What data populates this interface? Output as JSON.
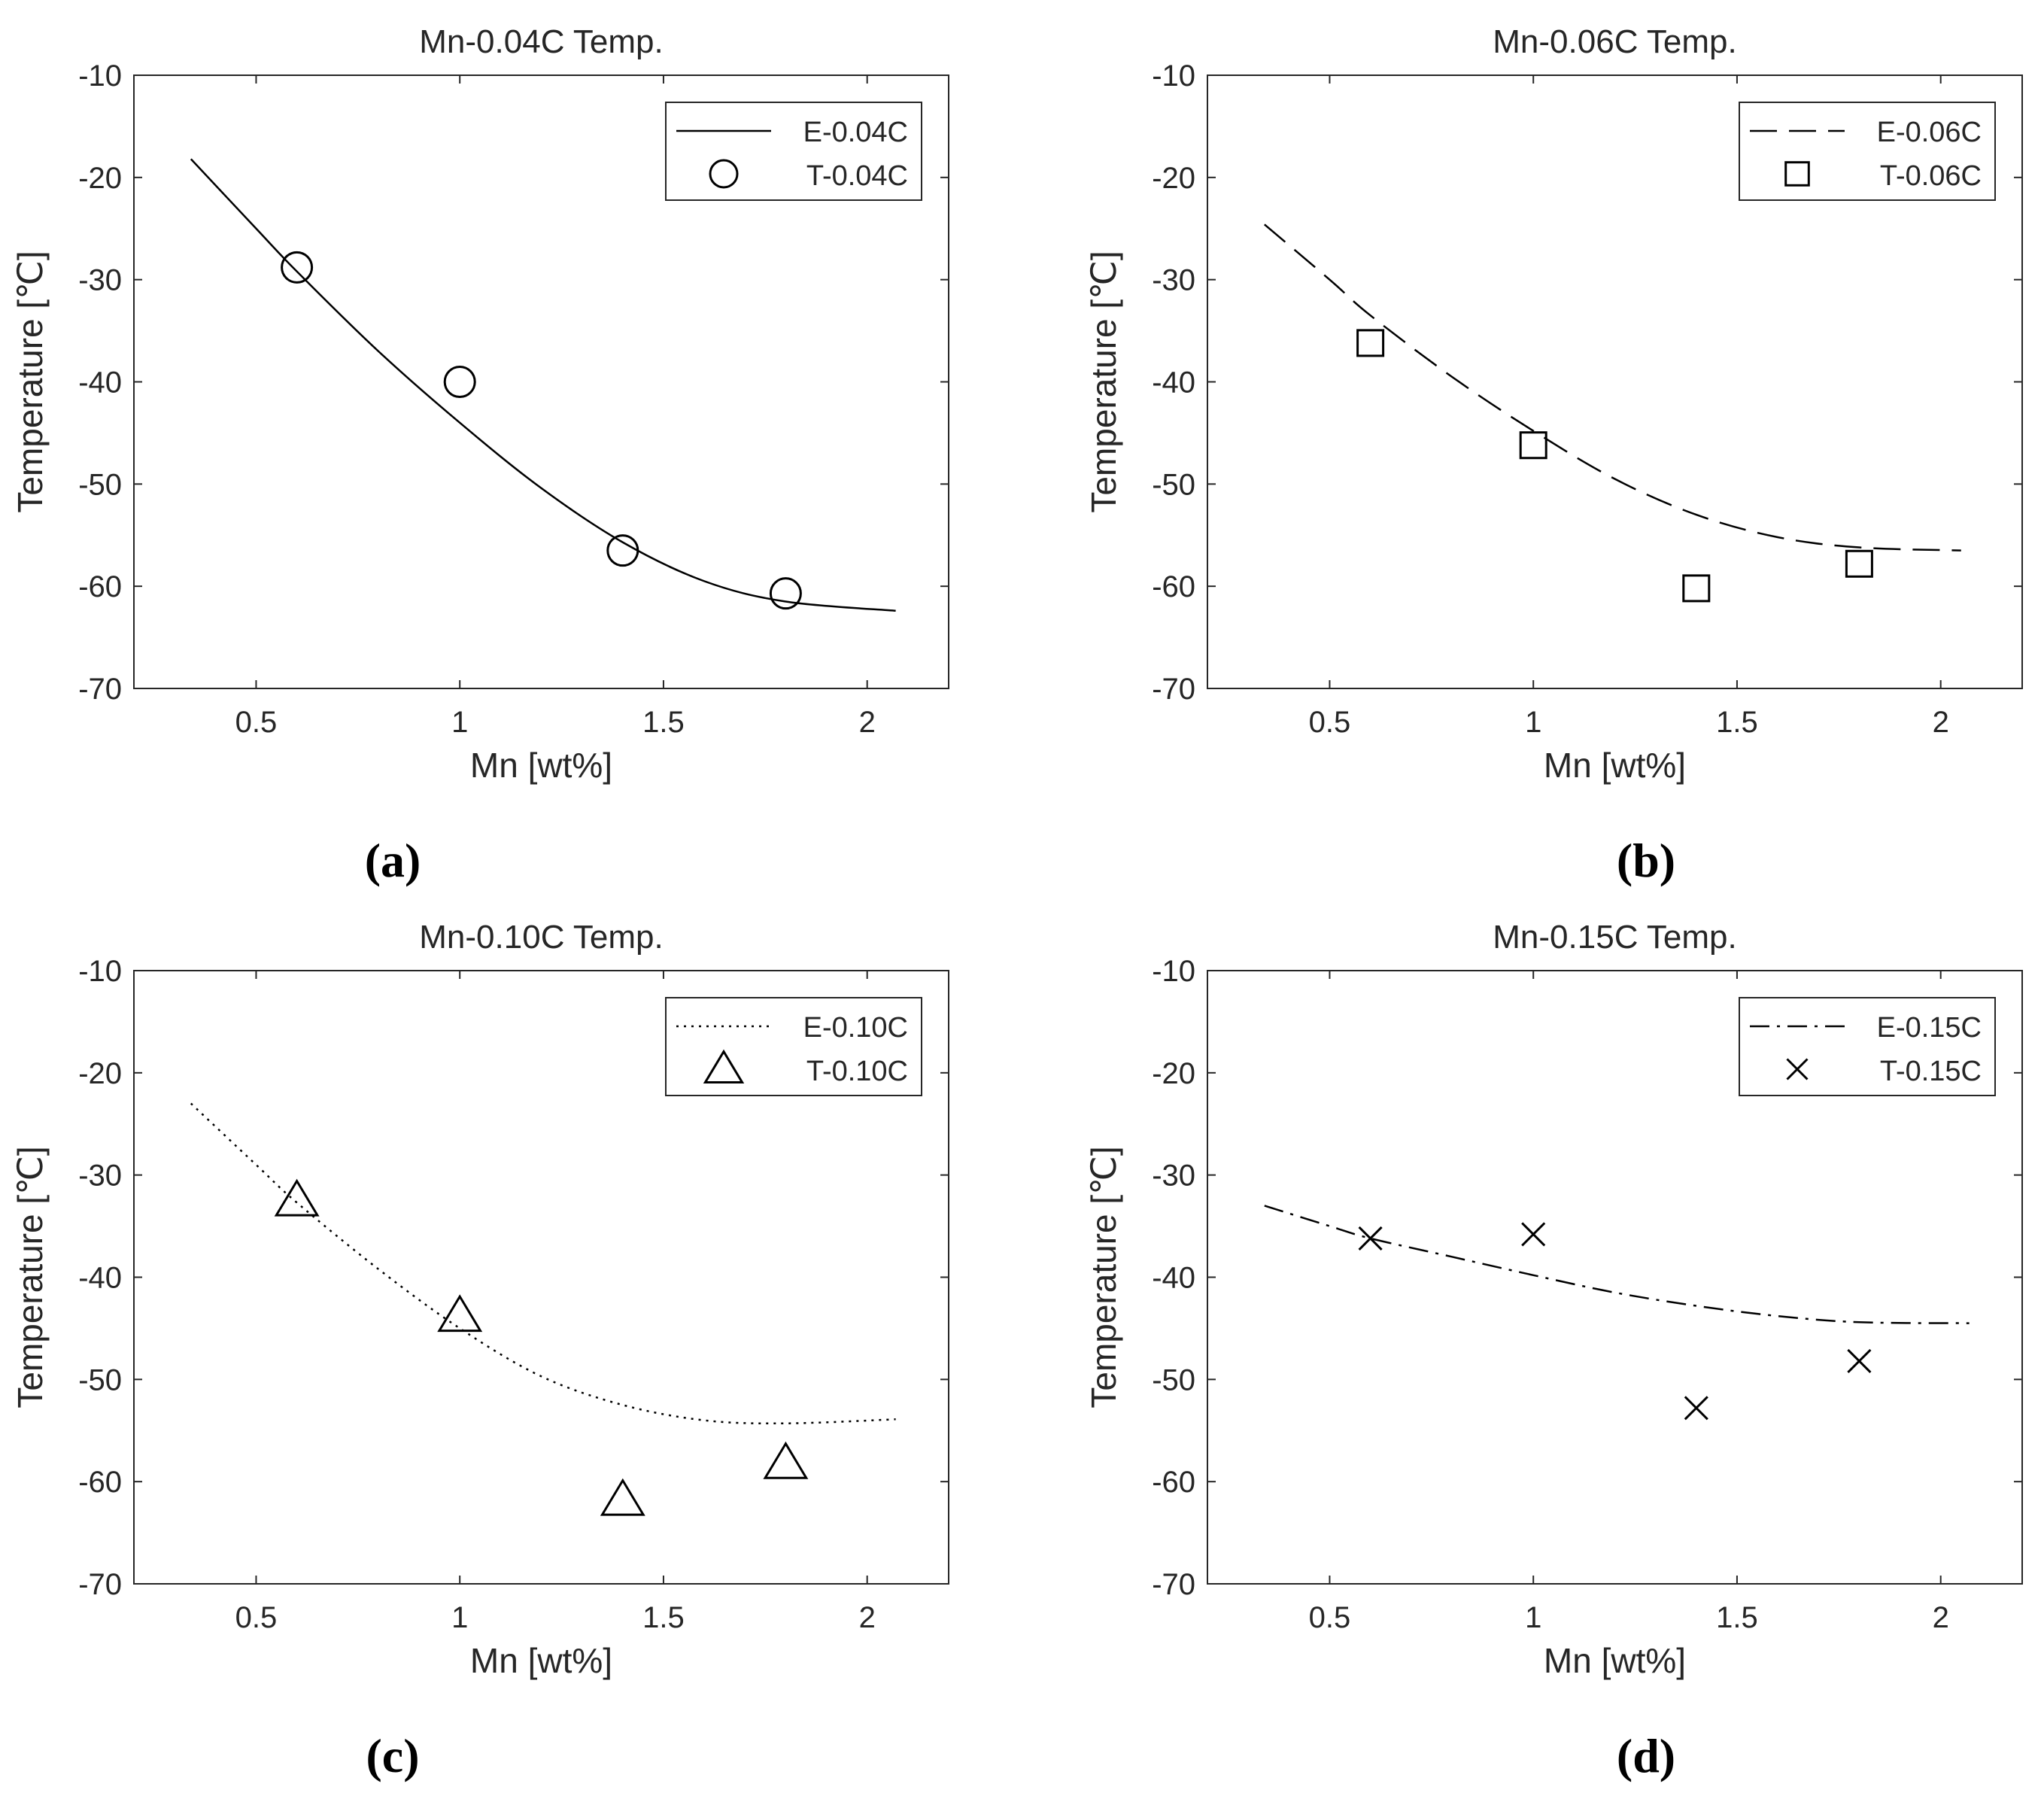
{
  "chart_data": [
    {
      "type": "line+scatter",
      "panel": "(a)",
      "title": "Mn-0.04C Temp.",
      "xlabel": "Mn [wt%]",
      "ylabel": "Temperature [℃]",
      "xlim": [
        0.2,
        2.2
      ],
      "ylim": [
        -70,
        -10
      ],
      "xticks": [
        0.5,
        1,
        1.5,
        2
      ],
      "xtick_labels": [
        "0.5",
        "1",
        "1.5",
        "2"
      ],
      "yticks": [
        -70,
        -60,
        -50,
        -40,
        -30,
        -20,
        -10
      ],
      "ytick_labels": [
        "-70",
        "-60",
        "-50",
        "-40",
        "-30",
        "-20",
        "-10"
      ],
      "legend": [
        "E-0.04C",
        "T-0.04C"
      ],
      "legend_position": "top-right",
      "line": {
        "name": "E-0.04C",
        "style": "solid",
        "x": [
          0.34,
          0.5,
          0.6,
          0.8,
          1.0,
          1.2,
          1.4,
          1.6,
          1.8,
          2.07
        ],
        "y": [
          -18.2,
          -25.0,
          -29.2,
          -37.0,
          -44.0,
          -50.4,
          -55.7,
          -59.5,
          -61.5,
          -62.4
        ]
      },
      "points": {
        "name": "T-0.04C",
        "marker": "circle",
        "x": [
          0.6,
          1.0,
          1.4,
          1.8
        ],
        "y": [
          -28.8,
          -40.0,
          -56.5,
          -60.7
        ]
      }
    },
    {
      "type": "line+scatter",
      "panel": "(b)",
      "title": "Mn-0.06C Temp.",
      "xlabel": "Mn [wt%]",
      "ylabel": "Temperature [℃]",
      "xlim": [
        0.2,
        2.2
      ],
      "ylim": [
        -70,
        -10
      ],
      "xticks": [
        0.5,
        1,
        1.5,
        2
      ],
      "xtick_labels": [
        "0.5",
        "1",
        "1.5",
        "2"
      ],
      "yticks": [
        -70,
        -60,
        -50,
        -40,
        -30,
        -20,
        -10
      ],
      "ytick_labels": [
        "-70",
        "-60",
        "-50",
        "-40",
        "-30",
        "-20",
        "-10"
      ],
      "legend": [
        "E-0.06C",
        "T-0.06C"
      ],
      "legend_position": "top-right",
      "line": {
        "name": "E-0.06C",
        "style": "dashed",
        "x": [
          0.34,
          0.5,
          0.6,
          0.8,
          1.0,
          1.2,
          1.4,
          1.6,
          1.8,
          2.05
        ],
        "y": [
          -24.6,
          -30.0,
          -33.5,
          -39.5,
          -44.8,
          -49.5,
          -53.0,
          -55.2,
          -56.2,
          -56.5
        ]
      },
      "points": {
        "name": "T-0.06C",
        "marker": "square",
        "x": [
          0.6,
          1.0,
          1.4,
          1.8
        ],
        "y": [
          -36.2,
          -46.2,
          -60.2,
          -57.8
        ]
      }
    },
    {
      "type": "line+scatter",
      "panel": "(c)",
      "title": "Mn-0.10C Temp.",
      "xlabel": "Mn [wt%]",
      "ylabel": "Temperature [℃]",
      "xlim": [
        0.2,
        2.2
      ],
      "ylim": [
        -70,
        -10
      ],
      "xticks": [
        0.5,
        1,
        1.5,
        2
      ],
      "xtick_labels": [
        "0.5",
        "1",
        "1.5",
        "2"
      ],
      "yticks": [
        -70,
        -60,
        -50,
        -40,
        -30,
        -20,
        -10
      ],
      "ytick_labels": [
        "-70",
        "-60",
        "-50",
        "-40",
        "-30",
        "-20",
        "-10"
      ],
      "legend": [
        "E-0.10C",
        "T-0.10C"
      ],
      "legend_position": "top-right",
      "line": {
        "name": "E-0.10C",
        "style": "dotted",
        "x": [
          0.34,
          0.5,
          0.6,
          0.8,
          1.0,
          1.2,
          1.4,
          1.6,
          1.8,
          2.07
        ],
        "y": [
          -23.0,
          -29.0,
          -32.7,
          -39.2,
          -45.0,
          -49.7,
          -52.5,
          -54.0,
          -54.3,
          -53.9
        ]
      },
      "points": {
        "name": "T-0.10C",
        "marker": "triangle",
        "x": [
          0.6,
          1.0,
          1.4,
          1.8
        ],
        "y": [
          -32.5,
          -43.8,
          -61.8,
          -58.2
        ]
      }
    },
    {
      "type": "line+scatter",
      "panel": "(d)",
      "title": "Mn-0.15C Temp.",
      "xlabel": "Mn [wt%]",
      "ylabel": "Temperature [℃]",
      "xlim": [
        0.2,
        2.2
      ],
      "ylim": [
        -70,
        -10
      ],
      "xticks": [
        0.5,
        1,
        1.5,
        2
      ],
      "xtick_labels": [
        "0.5",
        "1",
        "1.5",
        "2"
      ],
      "yticks": [
        -70,
        -60,
        -50,
        -40,
        -30,
        -20,
        -10
      ],
      "ytick_labels": [
        "-70",
        "-60",
        "-50",
        "-40",
        "-30",
        "-20",
        "-10"
      ],
      "legend": [
        "E-0.15C",
        "T-0.15C"
      ],
      "legend_position": "top-right",
      "line": {
        "name": "E-0.15C",
        "style": "dash-dot",
        "x": [
          0.34,
          0.5,
          0.6,
          0.8,
          1.0,
          1.2,
          1.4,
          1.6,
          1.8,
          2.07
        ],
        "y": [
          -33.0,
          -35.0,
          -36.2,
          -38.0,
          -39.8,
          -41.5,
          -42.8,
          -43.8,
          -44.4,
          -44.5
        ]
      },
      "points": {
        "name": "T-0.15C",
        "marker": "x",
        "x": [
          0.6,
          1.0,
          1.4,
          1.8
        ],
        "y": [
          -36.2,
          -35.8,
          -52.8,
          -48.2
        ]
      }
    }
  ]
}
